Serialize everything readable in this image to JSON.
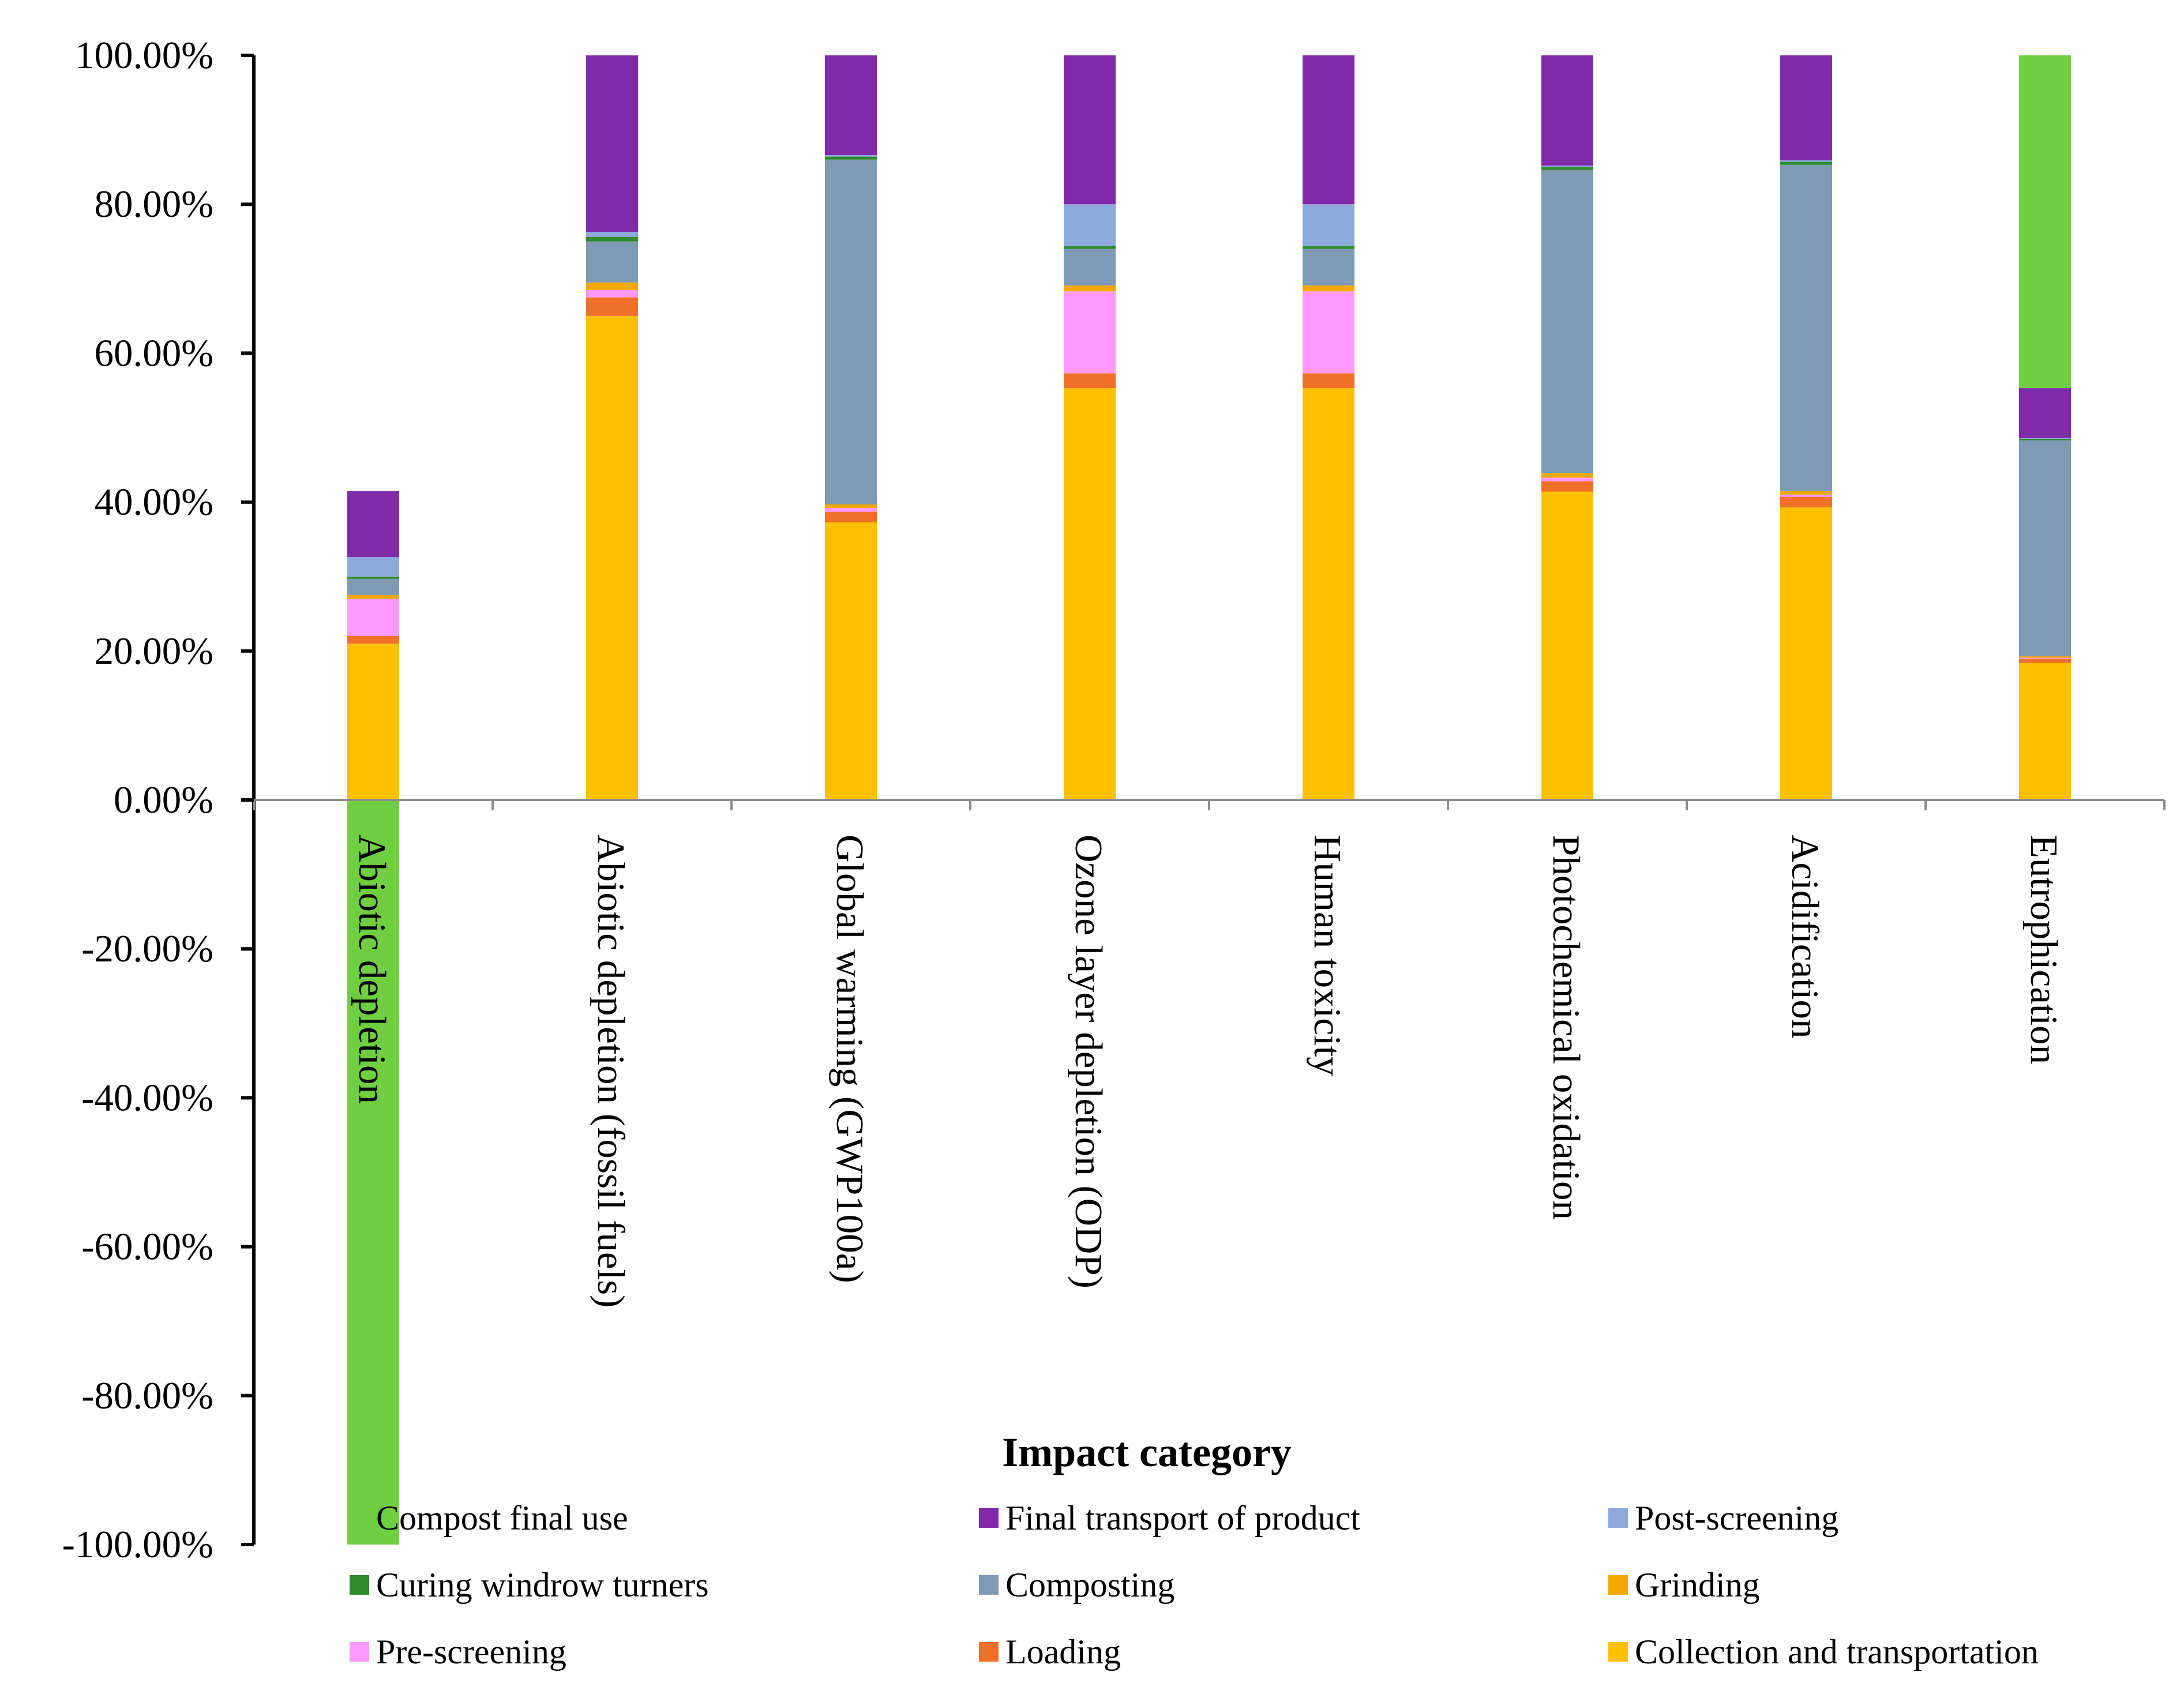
{
  "chart_data": {
    "type": "bar",
    "stacked": true,
    "xlabel": "Impact category",
    "ylabel": "",
    "ylim": [
      -100,
      100
    ],
    "yticks": [
      "100.00%",
      "80.00%",
      "60.00%",
      "40.00%",
      "20.00%",
      "0.00%",
      "-20.00%",
      "-40.00%",
      "-60.00%",
      "-80.00%",
      "-100.00%"
    ],
    "categories": [
      "Abiotic depletion",
      "Abiotic depletion (fossil fuels)",
      "Global warming (GWP100a)",
      "Ozone layer depletion (ODP)",
      "Human toxicity",
      "Photochemical oxidation",
      "Acidification",
      "Eutrophication"
    ],
    "legend_position": "bottom",
    "series": [
      {
        "name": "Collection and transportation",
        "color": "#FFC000",
        "values": [
          21.0,
          65.0,
          37.3,
          55.3,
          55.3,
          41.4,
          39.3,
          18.4
        ]
      },
      {
        "name": "Loading",
        "color": "#F07028",
        "values": [
          1.0,
          2.5,
          1.4,
          2.0,
          2.0,
          1.4,
          1.4,
          0.6
        ]
      },
      {
        "name": "Pre-screening",
        "color": "#FF99FF",
        "values": [
          5.0,
          1.0,
          0.5,
          11.0,
          11.0,
          0.5,
          0.3,
          0.1
        ]
      },
      {
        "name": "Grinding",
        "color": "#F0A800",
        "values": [
          0.5,
          1.0,
          0.5,
          0.8,
          0.8,
          0.6,
          0.5,
          0.2
        ]
      },
      {
        "name": "Composting",
        "color": "#7F9AB4",
        "values": [
          2.2,
          5.5,
          46.3,
          4.9,
          4.9,
          40.7,
          43.8,
          29.0
        ]
      },
      {
        "name": "Curing windrow turners",
        "color": "#2E8B2E",
        "values": [
          0.3,
          0.6,
          0.4,
          0.4,
          0.4,
          0.4,
          0.4,
          0.2
        ]
      },
      {
        "name": "Post-screening",
        "color": "#8EA9DB",
        "values": [
          2.6,
          0.7,
          0.2,
          5.6,
          5.6,
          0.2,
          0.2,
          0.1
        ]
      },
      {
        "name": "Final transport of product",
        "color": "#7F2AA8",
        "values": [
          8.9,
          23.7,
          13.4,
          20.0,
          20.0,
          14.8,
          14.1,
          6.7
        ]
      },
      {
        "name": "Compost final use",
        "color": "#6FCF40",
        "values": [
          -100.0,
          0,
          0,
          0,
          0,
          0,
          0,
          44.7
        ]
      }
    ],
    "legend_order": [
      "Compost final use",
      "Final transport of product",
      "Post-screening",
      "Curing windrow turners",
      "Composting",
      "Grinding",
      "Pre-screening",
      "Loading",
      "Collection and transportation"
    ]
  }
}
